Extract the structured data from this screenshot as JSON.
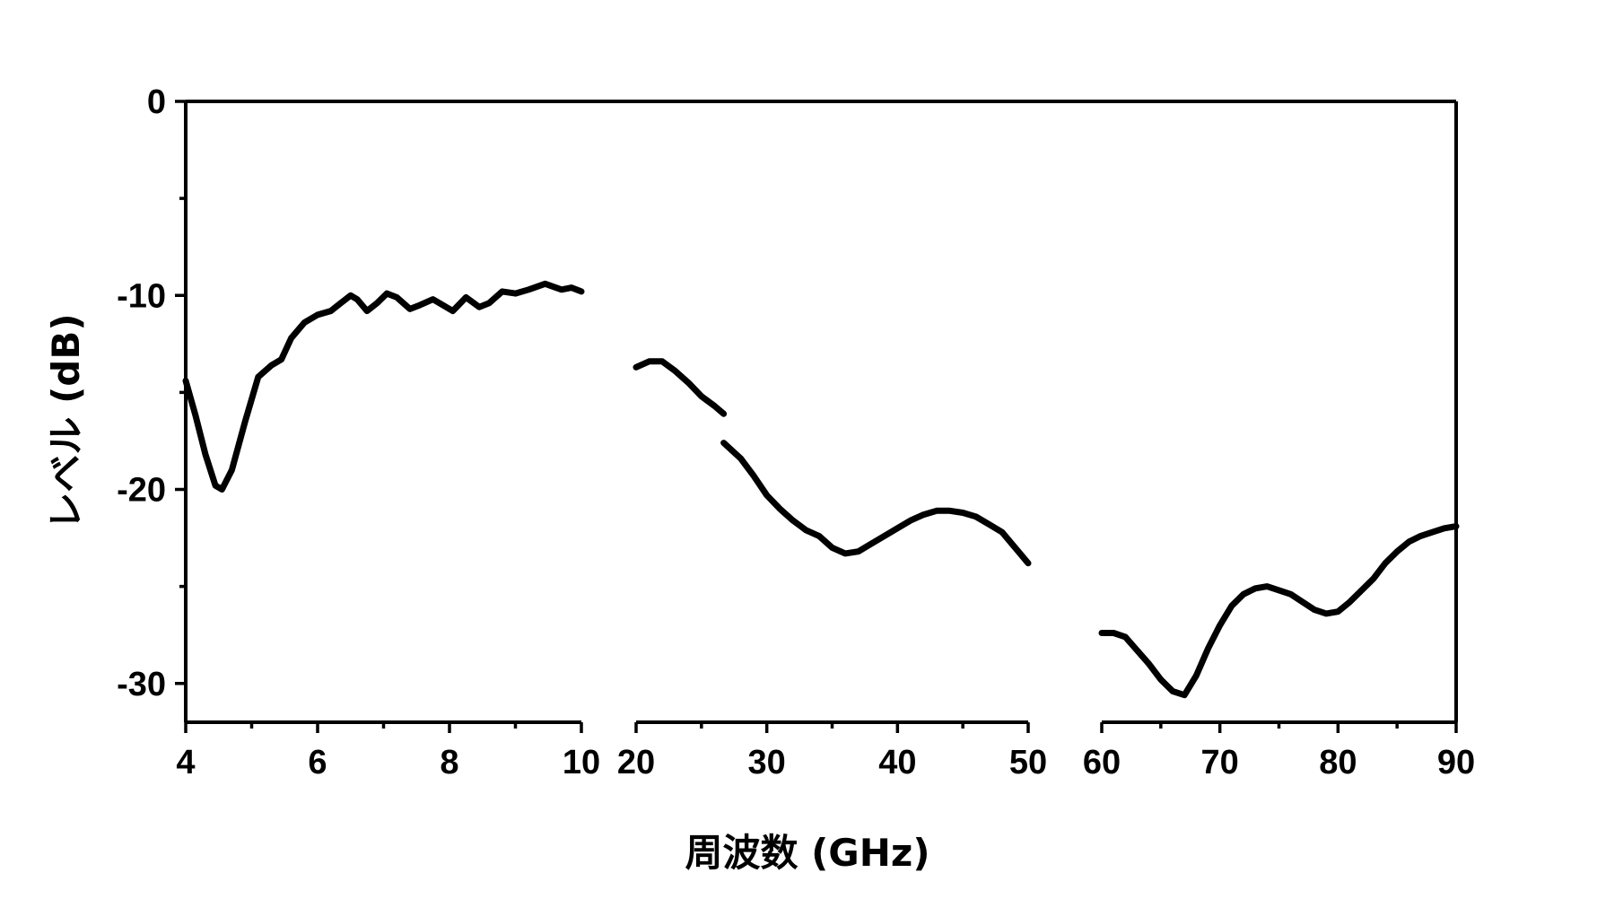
{
  "chart_data": {
    "type": "line",
    "title": "",
    "xlabel": "周波数 (GHz)",
    "ylabel": "レベル (dB)",
    "ylim": [
      -32,
      0
    ],
    "y_ticks": [
      0,
      -10,
      -20,
      -30
    ],
    "y_tick_labels": [
      "0",
      "-10",
      "-20",
      "-30"
    ],
    "y_minor_ticks": [
      -5,
      -15,
      -25
    ],
    "grid": false,
    "legend": "none",
    "line_color": "#000000",
    "x_axis_segments": [
      {
        "name": "4-10",
        "xlim": [
          4,
          10
        ],
        "ticks": [
          4,
          6,
          8,
          10
        ],
        "tick_labels": [
          "4",
          "6",
          "8",
          "10"
        ],
        "minor_ticks": [
          5,
          7,
          9
        ],
        "series": [
          {
            "x": [
              4.0,
              4.15,
              4.3,
              4.45,
              4.55,
              4.7,
              4.9,
              5.1,
              5.3,
              5.45,
              5.6,
              5.8,
              6.0,
              6.2,
              6.35,
              6.5,
              6.6,
              6.75,
              6.9,
              7.05,
              7.2,
              7.4,
              7.55,
              7.75,
              7.9,
              8.05,
              8.25,
              8.45,
              8.6,
              8.8,
              9.0,
              9.2,
              9.45,
              9.7,
              9.85,
              10.0
            ],
            "y": [
              -14.4,
              -16.2,
              -18.2,
              -19.8,
              -20.0,
              -19.0,
              -16.5,
              -14.2,
              -13.6,
              -13.3,
              -12.2,
              -11.4,
              -11.0,
              -10.8,
              -10.4,
              -10.0,
              -10.2,
              -10.8,
              -10.4,
              -9.9,
              -10.1,
              -10.7,
              -10.5,
              -10.2,
              -10.5,
              -10.8,
              -10.1,
              -10.6,
              -10.4,
              -9.8,
              -9.9,
              -9.7,
              -9.4,
              -9.7,
              -9.6,
              -9.8
            ]
          }
        ]
      },
      {
        "name": "20-50",
        "xlim": [
          20,
          50
        ],
        "ticks": [
          20,
          30,
          40,
          50
        ],
        "tick_labels": [
          "20",
          "30",
          "40",
          "50"
        ],
        "minor_ticks": [
          25,
          35,
          45
        ],
        "series": [
          {
            "x": [
              20.0,
              21.0,
              22.0,
              23.0,
              24.0,
              25.0,
              26.0,
              26.7
            ],
            "y": [
              -13.7,
              -13.4,
              -13.4,
              -13.9,
              -14.5,
              -15.2,
              -15.7,
              -16.1
            ]
          },
          {
            "x": [
              26.7,
              28.0,
              29.0,
              30.0,
              31.0,
              32.0,
              33.0,
              34.0,
              35.0,
              36.0,
              37.0,
              38.0,
              39.0,
              40.0,
              41.0,
              42.0,
              43.0,
              44.0,
              45.0,
              46.0,
              47.0,
              48.0,
              49.0,
              50.0
            ],
            "y": [
              -17.6,
              -18.4,
              -19.3,
              -20.3,
              -21.0,
              -21.6,
              -22.1,
              -22.4,
              -23.0,
              -23.3,
              -23.2,
              -22.8,
              -22.4,
              -22.0,
              -21.6,
              -21.3,
              -21.1,
              -21.1,
              -21.2,
              -21.4,
              -21.8,
              -22.2,
              -23.0,
              -23.8
            ]
          }
        ]
      },
      {
        "name": "60-90",
        "xlim": [
          60,
          90
        ],
        "ticks": [
          60,
          70,
          80,
          90
        ],
        "tick_labels": [
          "60",
          "70",
          "80",
          "90"
        ],
        "minor_ticks": [
          65,
          75,
          85
        ],
        "series": [
          {
            "x": [
              60.0,
              61.0,
              62.0,
              63.0,
              64.0,
              65.0,
              66.0,
              67.0,
              68.0,
              69.0,
              70.0,
              71.0,
              72.0,
              73.0,
              74.0,
              75.0,
              76.0,
              77.0,
              78.0,
              79.0,
              80.0,
              81.0,
              82.0,
              83.0,
              84.0,
              85.0,
              86.0,
              87.0,
              88.0,
              89.0,
              90.0
            ],
            "y": [
              -27.4,
              -27.4,
              -27.6,
              -28.3,
              -29.0,
              -29.8,
              -30.4,
              -30.6,
              -29.6,
              -28.2,
              -27.0,
              -26.0,
              -25.4,
              -25.1,
              -25.0,
              -25.2,
              -25.4,
              -25.8,
              -26.2,
              -26.4,
              -26.3,
              -25.8,
              -25.2,
              -24.6,
              -23.8,
              -23.2,
              -22.7,
              -22.4,
              -22.2,
              -22.0,
              -21.9
            ]
          }
        ]
      }
    ]
  }
}
